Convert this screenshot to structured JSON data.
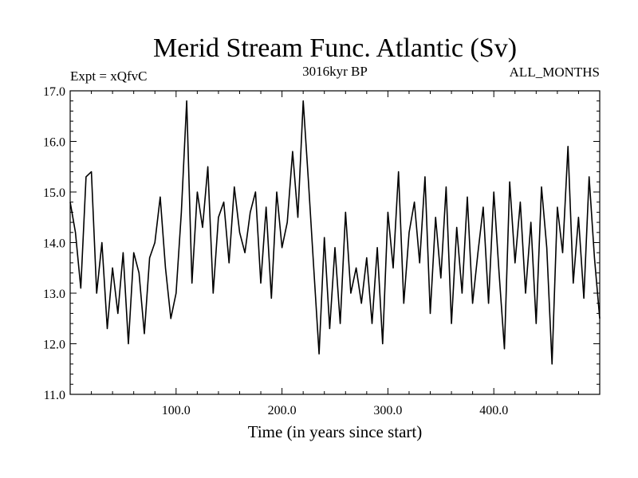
{
  "chart_data": {
    "type": "line",
    "title": "Merid Stream Func. Atlantic (Sv)",
    "subtitle_left": "Expt = xQfvC",
    "subtitle_center": "3016kyr BP",
    "subtitle_right": "ALL_MONTHS",
    "xlabel": "Time (in years since start)",
    "ylabel": "",
    "xlim": [
      0,
      500
    ],
    "ylim": [
      11.0,
      17.0
    ],
    "xticks": [
      100,
      200,
      300,
      400
    ],
    "xtick_labels": [
      "100.0",
      "200.0",
      "300.0",
      "400.0"
    ],
    "yticks": [
      11,
      12,
      13,
      14,
      15,
      16,
      17
    ],
    "ytick_labels": [
      "11.0",
      "12.0",
      "13.0",
      "14.0",
      "15.0",
      "16.0",
      "17.0"
    ],
    "series": [
      {
        "name": "Merid Stream Func. Atlantic",
        "color": "#000000",
        "x": [
          0,
          5,
          10,
          15,
          20,
          25,
          30,
          35,
          40,
          45,
          50,
          55,
          60,
          65,
          70,
          75,
          80,
          85,
          90,
          95,
          100,
          105,
          110,
          115,
          120,
          125,
          130,
          135,
          140,
          145,
          150,
          155,
          160,
          165,
          170,
          175,
          180,
          185,
          190,
          195,
          200,
          205,
          210,
          215,
          220,
          225,
          230,
          235,
          240,
          245,
          250,
          255,
          260,
          265,
          270,
          275,
          280,
          285,
          290,
          295,
          300,
          305,
          310,
          315,
          320,
          325,
          330,
          335,
          340,
          345,
          350,
          355,
          360,
          365,
          370,
          375,
          380,
          385,
          390,
          395,
          400,
          405,
          410,
          415,
          420,
          425,
          430,
          435,
          440,
          445,
          450,
          455,
          460,
          465,
          470,
          475,
          480,
          485,
          490,
          495,
          500
        ],
        "values": [
          14.8,
          14.2,
          13.1,
          15.3,
          15.4,
          13.0,
          14.0,
          12.3,
          13.5,
          12.6,
          13.8,
          12.0,
          13.8,
          13.4,
          12.2,
          13.7,
          14.0,
          14.9,
          13.5,
          12.5,
          13.0,
          14.6,
          16.8,
          13.2,
          15.0,
          14.3,
          15.5,
          13.0,
          14.5,
          14.8,
          13.6,
          15.1,
          14.2,
          13.8,
          14.6,
          15.0,
          13.2,
          14.7,
          12.9,
          15.0,
          13.9,
          14.4,
          15.8,
          14.5,
          16.8,
          15.2,
          13.5,
          11.8,
          14.1,
          12.3,
          13.9,
          12.4,
          14.6,
          13.0,
          13.5,
          12.8,
          13.7,
          12.4,
          13.9,
          12.0,
          14.6,
          13.5,
          15.4,
          12.8,
          14.2,
          14.8,
          13.6,
          15.3,
          12.6,
          14.5,
          13.3,
          15.1,
          12.4,
          14.3,
          13.0,
          14.9,
          12.8,
          13.8,
          14.7,
          12.8,
          15.0,
          13.4,
          11.9,
          15.2,
          13.6,
          14.8,
          13.0,
          14.4,
          12.4,
          15.1,
          13.9,
          11.6,
          14.7,
          13.8,
          15.9,
          13.2,
          14.5,
          12.9,
          15.3,
          13.7,
          12.5
        ]
      }
    ]
  }
}
